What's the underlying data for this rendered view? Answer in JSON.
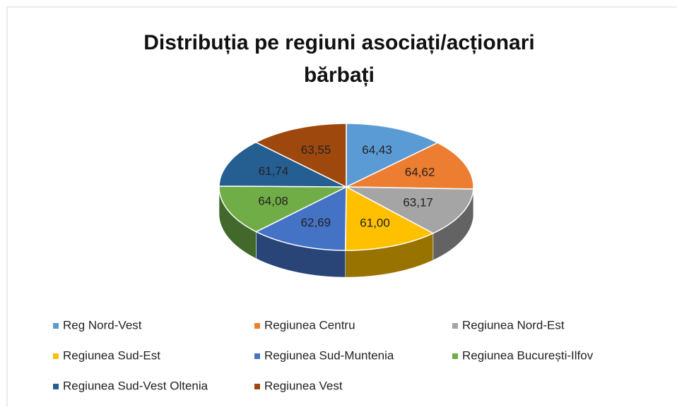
{
  "chart_data": {
    "type": "pie3d",
    "title": "Distribuția pe regiuni asociați/acționari bărbați",
    "categories": [
      "Reg Nord-Vest",
      "Regiunea Centru",
      "Regiunea Nord-Est",
      "Regiunea Sud-Est",
      "Regiunea Sud-Muntenia",
      "Regiunea București-Ilfov",
      "Regiunea Sud-Vest Oltenia",
      "Regiunea Vest"
    ],
    "values": [
      64.43,
      64.62,
      63.17,
      61.0,
      62.69,
      64.08,
      61.74,
      63.55
    ],
    "value_labels": [
      "64,43",
      "64,62",
      "63,17",
      "61,00",
      "62,69",
      "64,08",
      "61,74",
      "63,55"
    ],
    "colors": [
      "#5b9bd5",
      "#ed7d31",
      "#a5a5a5",
      "#ffc000",
      "#4472c4",
      "#70ad47",
      "#255e91",
      "#9e480e"
    ],
    "legend": "bottom"
  }
}
